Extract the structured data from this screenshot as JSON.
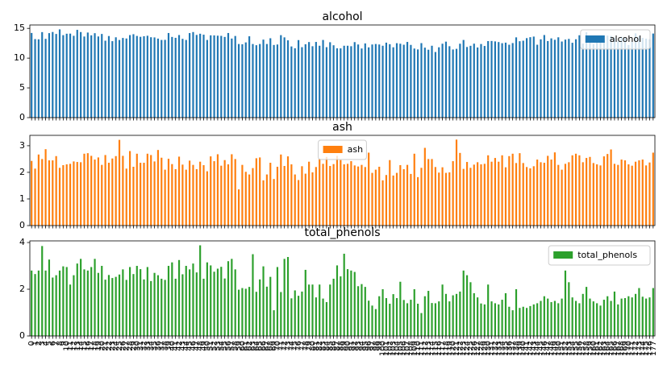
{
  "chart_data": [
    {
      "type": "bar",
      "title": "alcohol",
      "legend": "upper right",
      "series": [
        {
          "name": "alcohol",
          "color": "#1f77b4",
          "values": [
            14.23,
            13.2,
            13.16,
            14.37,
            13.24,
            14.2,
            14.39,
            14.06,
            14.83,
            13.86,
            14.1,
            14.12,
            13.75,
            14.75,
            14.38,
            13.63,
            14.3,
            13.83,
            14.19,
            13.64,
            14.06,
            12.93,
            13.71,
            12.85,
            13.5,
            13.05,
            13.39,
            13.3,
            13.87,
            14.02,
            13.73,
            13.58,
            13.68,
            13.76,
            13.51,
            13.48,
            13.28,
            13.05,
            13.07,
            14.22,
            13.56,
            13.41,
            13.88,
            13.24,
            13.05,
            14.21,
            14.38,
            13.9,
            14.1,
            13.94,
            13.05,
            13.83,
            13.82,
            13.77,
            13.74,
            13.56,
            14.22,
            13.29,
            13.72,
            12.37,
            12.33,
            12.64,
            13.67,
            12.37,
            12.17,
            12.37,
            13.11,
            12.37,
            13.34,
            12.21,
            12.29,
            13.86,
            13.49,
            12.99,
            11.96,
            11.66,
            13.03,
            11.84,
            12.33,
            12.7,
            12,
            12.72,
            12.08,
            13.05,
            11.84,
            12.67,
            12.16,
            11.65,
            11.64,
            12.08,
            12.08,
            12,
            12.69,
            12.29,
            11.62,
            12.47,
            11.81,
            12.29,
            12.37,
            12.29,
            12.08,
            12.6,
            12.34,
            11.82,
            12.51,
            12.42,
            12.25,
            12.72,
            12.22,
            11.61,
            11.46,
            12.52,
            11.76,
            11.41,
            12.08,
            11.03,
            11.82,
            12.42,
            12.77,
            12,
            11.45,
            11.56,
            12.42,
            13.05,
            11.87,
            12.07,
            12.43,
            11.79,
            12.37,
            12.04,
            12.86,
            12.88,
            12.81,
            12.7,
            12.51,
            12.6,
            12.25,
            12.53,
            13.49,
            12.84,
            12.93,
            13.36,
            13.52,
            13.62,
            12.25,
            13.16,
            13.88,
            12.87,
            13.32,
            13.08,
            13.5,
            12.79,
            13.11,
            13.23,
            12.58,
            13.17,
            13.84,
            12.45,
            14.34,
            13.48,
            12.36,
            13.69,
            12.85,
            12.96,
            13.78,
            13.73,
            13.45,
            12.82,
            13.58,
            13.4,
            12.2,
            12.77,
            14.16,
            13.71,
            13.4,
            13.27,
            13.17,
            14.13
          ]
        }
      ],
      "ylim": [
        0,
        15.57
      ],
      "yticks": [
        0,
        5,
        10,
        15
      ]
    },
    {
      "type": "bar",
      "title": "ash",
      "legend": "upper center",
      "series": [
        {
          "name": "ash",
          "color": "#ff7f0e",
          "values": [
            2.43,
            2.14,
            2.67,
            2.5,
            2.87,
            2.45,
            2.45,
            2.61,
            2.17,
            2.27,
            2.3,
            2.32,
            2.41,
            2.39,
            2.38,
            2.7,
            2.72,
            2.62,
            2.48,
            2.56,
            2.28,
            2.65,
            2.36,
            2.52,
            2.61,
            3.22,
            2.62,
            2.14,
            2.8,
            2.21,
            2.7,
            2.36,
            2.36,
            2.7,
            2.65,
            2.41,
            2.84,
            2.55,
            2.1,
            2.51,
            2.31,
            2.12,
            2.59,
            2.29,
            2.1,
            2.44,
            2.28,
            2.12,
            2.4,
            2.27,
            2.04,
            2.6,
            2.42,
            2.68,
            2.25,
            2.46,
            2.3,
            2.68,
            2.5,
            1.36,
            2.28,
            2.02,
            1.92,
            2.16,
            2.53,
            2.56,
            1.7,
            1.92,
            2.36,
            1.75,
            2.21,
            2.67,
            2.24,
            2.6,
            2.3,
            1.92,
            1.71,
            2.23,
            1.95,
            2.4,
            2,
            2.2,
            2.51,
            2.32,
            2.58,
            2.24,
            2.31,
            2.62,
            2.46,
            2.3,
            2.32,
            2.42,
            2.26,
            2.22,
            2.28,
            2.2,
            2.74,
            1.98,
            2.1,
            2.21,
            1.7,
            1.9,
            2.46,
            1.88,
            1.98,
            2.27,
            2.12,
            2.28,
            1.94,
            2.7,
            1.82,
            2.17,
            2.92,
            2.5,
            2.5,
            2.2,
            1.99,
            2.19,
            1.98,
            2,
            2.42,
            3.23,
            2.73,
            2.13,
            2.39,
            2.17,
            2.29,
            2.38,
            2.3,
            2.32,
            2.64,
            2.4,
            2.54,
            2.4,
            2.64,
            2.19,
            2.61,
            2.7,
            2.35,
            2.72,
            2.35,
            2.2,
            2.15,
            2.23,
            2.48,
            2.38,
            2.36,
            2.62,
            2.48,
            2.75,
            2.28,
            2.1,
            2.32,
            2.38,
            2.64,
            2.7,
            2.64,
            2.38,
            2.54,
            2.58,
            2.35,
            2.3,
            2.26,
            2.6,
            2.69,
            2.86,
            2.32,
            2.28,
            2.48,
            2.45,
            2.3,
            2.25,
            2.4,
            2.45,
            2.48,
            2.26,
            2.37,
            2.74
          ]
        }
      ],
      "ylim": [
        0,
        3.39
      ],
      "yticks": [
        0,
        1,
        2,
        3
      ]
    },
    {
      "type": "bar",
      "title": "total_phenols",
      "legend": "upper right",
      "series": [
        {
          "name": "total_phenols",
          "color": "#2ca02c",
          "values": [
            2.8,
            2.65,
            2.8,
            3.85,
            2.8,
            3.27,
            2.5,
            2.6,
            2.8,
            2.98,
            2.95,
            2.2,
            2.6,
            3.1,
            3.3,
            2.85,
            2.8,
            2.95,
            3.3,
            2.7,
            3,
            2.41,
            2.61,
            2.48,
            2.53,
            2.63,
            2.85,
            2.4,
            2.95,
            2.65,
            3,
            2.86,
            2.42,
            2.95,
            2.35,
            2.7,
            2.6,
            2.45,
            2.4,
            3,
            3.15,
            2.45,
            3.25,
            2.64,
            3,
            2.85,
            3.1,
            2.72,
            3.88,
            2.45,
            3.15,
            3.02,
            2.75,
            2.88,
            2.96,
            2.46,
            3.2,
            3.3,
            2.85,
            1.98,
            2.05,
            2.02,
            2.1,
            3.5,
            1.89,
            2.42,
            2.98,
            2.11,
            2.53,
            1.1,
            2.95,
            1.88,
            3.3,
            3.38,
            1.61,
            1.95,
            1.72,
            1.9,
            2.83,
            2.2,
            2.2,
            1.65,
            2.2,
            1.6,
            1.45,
            2.2,
            2.45,
            3.02,
            2.55,
            3.52,
            2.86,
            2.8,
            2.74,
            2.13,
            2.22,
            2.1,
            1.51,
            1.3,
            1.15,
            1.7,
            2,
            1.62,
            1.38,
            1.79,
            1.62,
            2.32,
            1.54,
            1.4,
            1.55,
            2,
            1.38,
            0.98,
            1.7,
            1.93,
            1.41,
            1.4,
            1.48,
            2.2,
            1.8,
            1.48,
            1.74,
            1.8,
            1.9,
            2.8,
            2.6,
            2.3,
            1.83,
            1.65,
            1.39,
            1.35,
            2.2,
            1.48,
            1.4,
            1.35,
            1.55,
            1.83,
            1.25,
            1.1,
            2,
            1.2,
            1.25,
            1.2,
            1.28,
            1.35,
            1.4,
            1.5,
            1.7,
            1.6,
            1.45,
            1.5,
            1.4,
            1.6,
            2.8,
            2.3,
            1.65,
            1.5,
            1.4,
            1.8,
            2.1,
            1.6,
            1.48,
            1.4,
            1.3,
            1.55,
            1.7,
            1.5,
            1.9,
            1.35,
            1.6,
            1.62,
            1.7,
            1.65,
            1.8,
            2.05,
            1.68,
            1.6,
            1.65,
            2.05
          ]
        }
      ],
      "ylim": [
        0,
        4.07
      ],
      "yticks": [
        0,
        2,
        4
      ],
      "categories": [
        0,
        1,
        2,
        3,
        4,
        5,
        6,
        7,
        8,
        9,
        10,
        11,
        12,
        13,
        14,
        15,
        16,
        17,
        18,
        19,
        20,
        21,
        22,
        23,
        24,
        25,
        26,
        27,
        28,
        29,
        30,
        31,
        32,
        33,
        34,
        35,
        36,
        37,
        38,
        39,
        40,
        41,
        42,
        43,
        44,
        45,
        46,
        47,
        48,
        49,
        50,
        51,
        52,
        53,
        54,
        55,
        56,
        57,
        58,
        59,
        60,
        61,
        62,
        63,
        64,
        65,
        66,
        67,
        68,
        69,
        70,
        71,
        72,
        73,
        74,
        75,
        76,
        77,
        78,
        79,
        80,
        81,
        82,
        83,
        84,
        85,
        86,
        87,
        88,
        89,
        90,
        91,
        92,
        93,
        94,
        95,
        96,
        97,
        98,
        99,
        100,
        101,
        102,
        103,
        104,
        105,
        106,
        107,
        108,
        109,
        110,
        111,
        112,
        113,
        114,
        115,
        116,
        117,
        118,
        119,
        120,
        121,
        122,
        123,
        124,
        125,
        126,
        127,
        128,
        129,
        130,
        131,
        132,
        133,
        134,
        135,
        136,
        137,
        138,
        139,
        140,
        141,
        142,
        143,
        144,
        145,
        146,
        147,
        148,
        149,
        150,
        151,
        152,
        153,
        154,
        155,
        156,
        157,
        158,
        159,
        160,
        161,
        162,
        163,
        164,
        165,
        166,
        167,
        168,
        169,
        170,
        171,
        172,
        173,
        174,
        175,
        176,
        177
      ]
    }
  ]
}
